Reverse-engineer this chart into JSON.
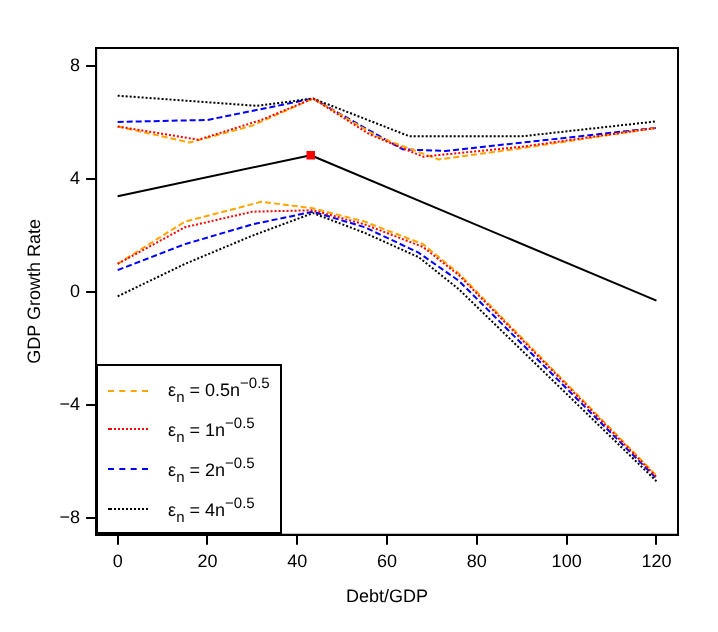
{
  "chart_data": {
    "type": "line",
    "xlabel": "Debt/GDP",
    "ylabel": "GDP Growth Rate",
    "xlim": [
      -4.8,
      124.8
    ],
    "ylim": [
      -8.6,
      8.65
    ],
    "xticks": [
      0,
      20,
      40,
      60,
      80,
      100,
      120
    ],
    "yticks": [
      8,
      4,
      0,
      {
        "value": -4,
        "label": "−4"
      },
      {
        "value": -8,
        "label": "−8"
      }
    ],
    "grid": false,
    "legend": "bottom left",
    "marker": "none",
    "series": [
      {
        "name": "ε$_{n}$ = 0.5n$^{−0.5}$",
        "color": "#ffa500",
        "line_style": "dashed",
        "x": [
          0,
          16,
          30,
          43.5,
          58,
          71.5,
          90,
          120
        ],
        "values": [
          5.87,
          5.3,
          5.9,
          6.86,
          5.5,
          4.7,
          5.1,
          5.82
        ]
      },
      {
        "name": "ε$_{n}$ = 1n$^{−0.5}$",
        "color": "#ff0000",
        "line_style": "dotted",
        "x": [
          0,
          18,
          32,
          43.5,
          56,
          68,
          90,
          120
        ],
        "values": [
          5.87,
          5.4,
          6.1,
          6.86,
          5.6,
          4.8,
          5.15,
          5.82
        ]
      },
      {
        "name": "ε$_{n}$ = 2n$^{−0.5}$",
        "color": "#0000ff",
        "line_style": "dashed",
        "x": [
          0,
          20,
          35.5,
          43.5,
          63.5,
          73,
          120
        ],
        "values": [
          6.03,
          6.1,
          6.6,
          6.86,
          5.06,
          5.0,
          5.82
        ]
      },
      {
        "name": "ε$_{n}$ = 4n$^{−0.5}$",
        "color": "#000000",
        "line_style": "dotted",
        "x": [
          0,
          31,
          43.5,
          65,
          90,
          120
        ],
        "values": [
          6.96,
          6.6,
          6.86,
          5.52,
          5.52,
          6.05
        ]
      },
      {
        "color": "#ffa500",
        "line_style": "dashed",
        "x": [
          0,
          15,
          32,
          43.5,
          55,
          68,
          76,
          120
        ],
        "values": [
          1.0,
          2.5,
          3.2,
          2.97,
          2.5,
          1.7,
          0.66,
          -6.5
        ]
      },
      {
        "color": "#ff0000",
        "line_style": "dotted",
        "x": [
          0,
          15,
          30,
          43.5,
          55,
          68,
          76,
          120
        ],
        "values": [
          1.0,
          2.3,
          2.85,
          2.9,
          2.4,
          1.6,
          0.6,
          -6.55
        ]
      },
      {
        "color": "#0000ff",
        "line_style": "dashed",
        "x": [
          0,
          15,
          30,
          43.5,
          55,
          67,
          76,
          120
        ],
        "values": [
          0.78,
          1.7,
          2.4,
          2.85,
          2.3,
          1.4,
          0.4,
          -6.6
        ]
      },
      {
        "color": "#000000",
        "line_style": "dotted",
        "x": [
          0,
          15,
          30,
          43.5,
          55,
          67,
          76,
          120
        ],
        "values": [
          -0.15,
          1.0,
          2.0,
          2.8,
          2.1,
          1.24,
          0.1,
          -6.7
        ]
      },
      {
        "color": "#000000",
        "line_style": "solid",
        "x": [
          0,
          43,
          120
        ],
        "values": [
          3.4,
          4.85,
          -0.3
        ]
      },
      {
        "type": "scatter",
        "color": "#ff0000",
        "marker": "square",
        "x": [
          43
        ],
        "values": [
          4.85
        ]
      }
    ]
  }
}
